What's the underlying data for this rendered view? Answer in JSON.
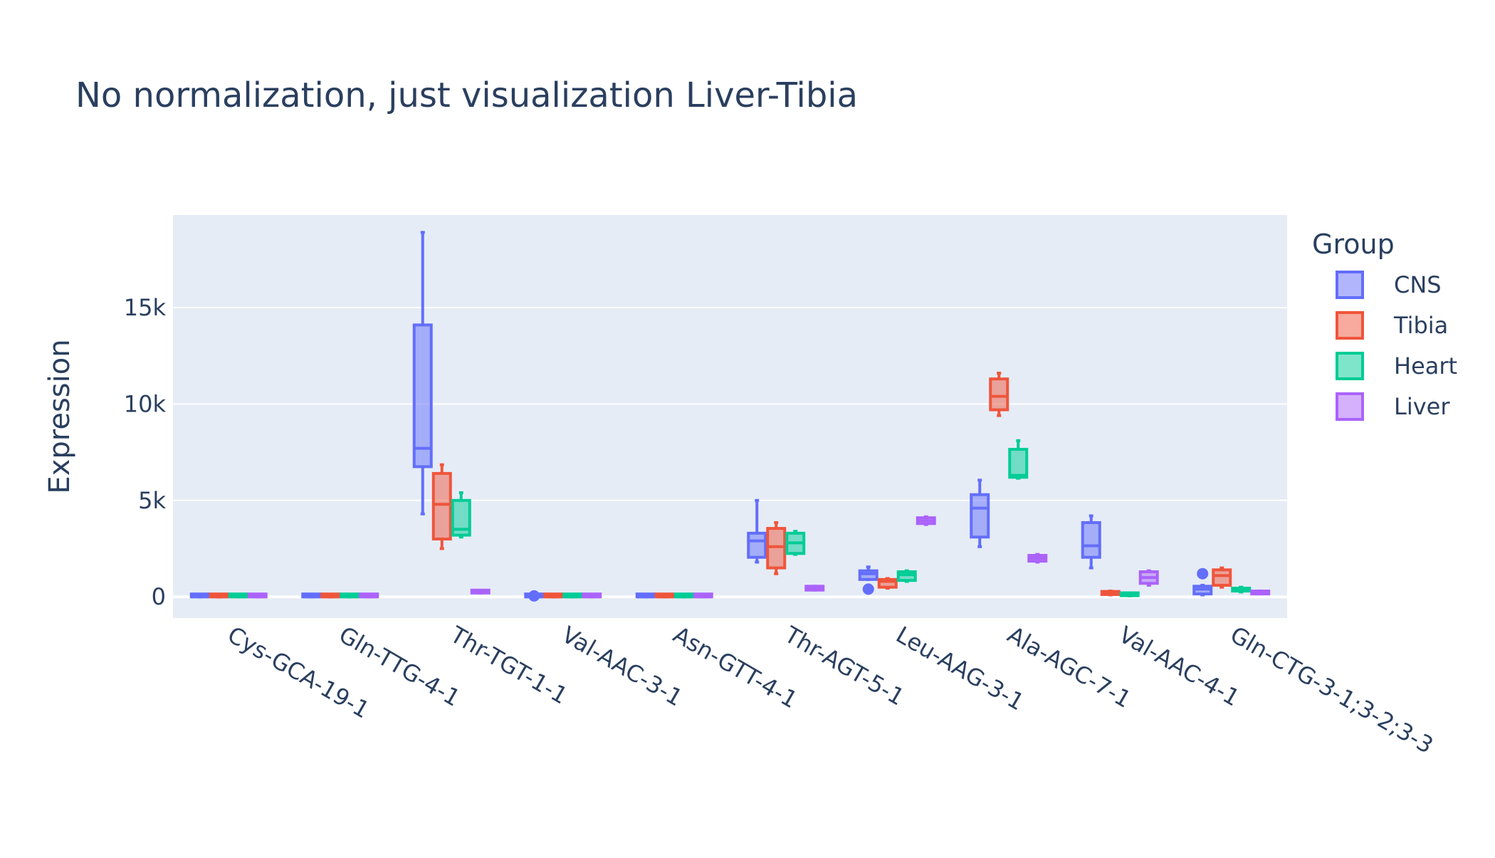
{
  "chart_data": {
    "type": "box",
    "title": "No normalization, just visualization Liver-Tibia",
    "xlabel": "",
    "ylabel": "Expression",
    "ylim": [
      -1100,
      19800
    ],
    "yticks": [
      0,
      5000,
      10000,
      15000
    ],
    "ytick_labels": [
      "0",
      "5k",
      "10k",
      "15k"
    ],
    "grid": true,
    "legend_title": "Group",
    "legend_position": "right",
    "categories": [
      "Cys-GCA-19-1",
      "Gln-TTG-4-1",
      "Thr-TGT-1-1",
      "Val-AAC-3-1",
      "Asn-GTT-4-1",
      "Thr-AGT-5-1",
      "Leu-AAG-3-1",
      "Ala-AGC-7-1",
      "Val-AAC-4-1",
      "Gln-CTG-3-1;3-2;3-3"
    ],
    "series": [
      {
        "name": "CNS",
        "color": "#636efa",
        "boxes": [
          {
            "min": 0,
            "q1": 0,
            "median": 0,
            "q3": 0,
            "max": 0,
            "outliers": []
          },
          {
            "min": 0,
            "q1": 0,
            "median": 0,
            "q3": 0,
            "max": 0,
            "outliers": []
          },
          {
            "min": 4300,
            "q1": 6750,
            "median": 7700,
            "q3": 14100,
            "max": 18900,
            "outliers": []
          },
          {
            "min": 0,
            "q1": 0,
            "median": 0,
            "q3": 0,
            "max": 0,
            "outliers": [
              50
            ]
          },
          {
            "min": 0,
            "q1": 0,
            "median": 0,
            "q3": 0,
            "max": 0,
            "outliers": []
          },
          {
            "min": 1800,
            "q1": 2050,
            "median": 2900,
            "q3": 3300,
            "max": 5000,
            "outliers": []
          },
          {
            "min": 900,
            "q1": 900,
            "median": 1200,
            "q3": 1350,
            "max": 1550,
            "outliers": [
              400
            ]
          },
          {
            "min": 2600,
            "q1": 3100,
            "median": 4600,
            "q3": 5300,
            "max": 6050,
            "outliers": []
          },
          {
            "min": 1500,
            "q1": 2050,
            "median": 2650,
            "q3": 3850,
            "max": 4200,
            "outliers": []
          },
          {
            "min": 100,
            "q1": 150,
            "median": 400,
            "q3": 550,
            "max": 600,
            "outliers": [
              1200
            ]
          }
        ]
      },
      {
        "name": "Tibia",
        "color": "#EF553B",
        "boxes": [
          {
            "min": 0,
            "q1": 0,
            "median": 0,
            "q3": 0,
            "max": 0,
            "outliers": []
          },
          {
            "min": 0,
            "q1": 0,
            "median": 0,
            "q3": 0,
            "max": 0,
            "outliers": []
          },
          {
            "min": 2500,
            "q1": 3000,
            "median": 4800,
            "q3": 6400,
            "max": 6850,
            "outliers": []
          },
          {
            "min": 0,
            "q1": 0,
            "median": 0,
            "q3": 0,
            "max": 0,
            "outliers": []
          },
          {
            "min": 0,
            "q1": 0,
            "median": 0,
            "q3": 0,
            "max": 0,
            "outliers": []
          },
          {
            "min": 1200,
            "q1": 1500,
            "median": 2600,
            "q3": 3550,
            "max": 3850,
            "outliers": []
          },
          {
            "min": 450,
            "q1": 500,
            "median": 800,
            "q3": 900,
            "max": 950,
            "outliers": []
          },
          {
            "min": 9400,
            "q1": 9700,
            "median": 10400,
            "q3": 11300,
            "max": 11600,
            "outliers": []
          },
          {
            "min": 100,
            "q1": 120,
            "median": 200,
            "q3": 280,
            "max": 300,
            "outliers": []
          },
          {
            "min": 500,
            "q1": 600,
            "median": 1100,
            "q3": 1400,
            "max": 1500,
            "outliers": []
          }
        ]
      },
      {
        "name": "Heart",
        "color": "#00cc96",
        "boxes": [
          {
            "min": 0,
            "q1": 0,
            "median": 0,
            "q3": 0,
            "max": 0,
            "outliers": []
          },
          {
            "min": 0,
            "q1": 0,
            "median": 0,
            "q3": 0,
            "max": 0,
            "outliers": []
          },
          {
            "min": 3100,
            "q1": 3200,
            "median": 3500,
            "q3": 5000,
            "max": 5400,
            "outliers": []
          },
          {
            "min": 0,
            "q1": 0,
            "median": 0,
            "q3": 0,
            "max": 0,
            "outliers": []
          },
          {
            "min": 0,
            "q1": 0,
            "median": 0,
            "q3": 0,
            "max": 0,
            "outliers": []
          },
          {
            "min": 2200,
            "q1": 2250,
            "median": 2800,
            "q3": 3300,
            "max": 3400,
            "outliers": []
          },
          {
            "min": 800,
            "q1": 850,
            "median": 1150,
            "q3": 1300,
            "max": 1350,
            "outliers": []
          },
          {
            "min": 6150,
            "q1": 6200,
            "median": 6300,
            "q3": 7650,
            "max": 8100,
            "outliers": []
          },
          {
            "min": 50,
            "q1": 60,
            "median": 100,
            "q3": 180,
            "max": 200,
            "outliers": []
          },
          {
            "min": 250,
            "q1": 300,
            "median": 400,
            "q3": 450,
            "max": 500,
            "outliers": []
          }
        ]
      },
      {
        "name": "Liver",
        "color": "#ab63fa",
        "boxes": [
          {
            "min": 0,
            "q1": 0,
            "median": 0,
            "q3": 0,
            "max": 0,
            "outliers": []
          },
          {
            "min": 0,
            "q1": 0,
            "median": 0,
            "q3": 0,
            "max": 0,
            "outliers": []
          },
          {
            "min": 200,
            "q1": 200,
            "median": 250,
            "q3": 300,
            "max": 300,
            "outliers": []
          },
          {
            "min": 0,
            "q1": 0,
            "median": 0,
            "q3": 0,
            "max": 0,
            "outliers": []
          },
          {
            "min": 0,
            "q1": 0,
            "median": 0,
            "q3": 0,
            "max": 0,
            "outliers": []
          },
          {
            "min": 350,
            "q1": 350,
            "median": 450,
            "q3": 550,
            "max": 550,
            "outliers": []
          },
          {
            "min": 3750,
            "q1": 3800,
            "median": 3950,
            "q3": 4100,
            "max": 4150,
            "outliers": []
          },
          {
            "min": 1800,
            "q1": 1850,
            "median": 2000,
            "q3": 2150,
            "max": 2200,
            "outliers": []
          },
          {
            "min": 600,
            "q1": 700,
            "median": 1000,
            "q3": 1300,
            "max": 1350,
            "outliers": []
          },
          {
            "min": 150,
            "q1": 150,
            "median": 200,
            "q3": 300,
            "max": 300,
            "outliers": []
          }
        ]
      }
    ]
  }
}
